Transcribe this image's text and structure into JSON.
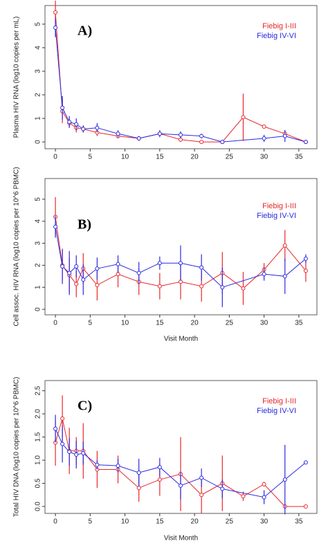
{
  "chart_data": [
    {
      "type": "line",
      "panel_label": "A)",
      "ylabel": "Plasma HIV RNA (log10 copies per mL)",
      "xlim": [
        -1.5,
        37.6
      ],
      "ylim": [
        -0.29,
        5.79
      ],
      "xticks": [
        0,
        5,
        10,
        15,
        20,
        25,
        30,
        35
      ],
      "yticks": [
        0,
        1,
        2,
        3,
        4,
        5
      ],
      "series": [
        {
          "name": "Fiebig I-III",
          "color": "#e8262a",
          "x": [
            0,
            1,
            2,
            3,
            4,
            6,
            9,
            12,
            15,
            18,
            21,
            24,
            27,
            30,
            33,
            36
          ],
          "values": [
            5.5,
            1.3,
            0.8,
            0.6,
            0.55,
            0.4,
            0.25,
            0.15,
            0.35,
            0.1,
            0.0,
            0.0,
            1.05,
            0.65,
            0.35,
            0.0
          ],
          "errors": [
            0.5,
            0.5,
            0.2,
            0.2,
            0.15,
            0.15,
            0.1,
            0.05,
            0.1,
            0.1,
            0.05,
            0.05,
            1.0,
            0.05,
            0.15,
            0.05
          ]
        },
        {
          "name": "Fiebig IV-VI",
          "color": "#2a2ae0",
          "x": [
            0,
            1,
            2,
            3,
            4,
            6,
            9,
            12,
            15,
            18,
            21,
            24,
            30,
            33,
            36
          ],
          "values": [
            4.85,
            1.45,
            0.85,
            0.75,
            0.55,
            0.6,
            0.35,
            0.15,
            0.35,
            0.3,
            0.25,
            0.0,
            0.15,
            0.25,
            0.0
          ],
          "errors": [
            0.4,
            0.5,
            0.25,
            0.25,
            0.15,
            0.2,
            0.15,
            0.1,
            0.15,
            0.15,
            0.1,
            0.05,
            0.15,
            0.25,
            0.05
          ]
        }
      ]
    },
    {
      "type": "line",
      "panel_label": "B)",
      "ylabel": "Cell assoc. HIV RNA (log10 copies per 10^6 PBMC)",
      "xlabel": "Visit Month",
      "xlim": [
        -1.5,
        37.6
      ],
      "ylim": [
        -0.25,
        5.94
      ],
      "xticks": [
        0,
        5,
        10,
        15,
        20,
        25,
        30,
        35
      ],
      "yticks": [
        0,
        1,
        2,
        3,
        4,
        5
      ],
      "series": [
        {
          "name": "Fiebig I-III",
          "color": "#e8262a",
          "x": [
            0,
            1,
            2,
            3,
            4,
            6,
            9,
            12,
            15,
            18,
            21,
            24,
            27,
            30,
            33,
            36
          ],
          "values": [
            4.2,
            2.0,
            1.55,
            1.15,
            1.85,
            1.1,
            1.6,
            1.25,
            1.05,
            1.25,
            1.05,
            1.65,
            0.95,
            1.8,
            2.9,
            1.75
          ],
          "errors": [
            0.9,
            0.7,
            0.8,
            0.6,
            0.7,
            0.7,
            0.6,
            0.6,
            0.6,
            0.8,
            0.7,
            0.95,
            0.75,
            0.3,
            0.7,
            0.5
          ]
        },
        {
          "name": "Fiebig IV-VI",
          "color": "#2a2ae0",
          "x": [
            0,
            1,
            2,
            3,
            4,
            6,
            9,
            12,
            15,
            18,
            21,
            24,
            30,
            33,
            36
          ],
          "values": [
            3.75,
            1.95,
            1.65,
            1.95,
            1.35,
            1.85,
            2.05,
            1.65,
            2.1,
            2.1,
            1.9,
            1.0,
            1.6,
            1.5,
            2.3
          ],
          "errors": [
            0.5,
            0.8,
            1.0,
            0.5,
            0.7,
            0.5,
            0.4,
            0.5,
            0.3,
            0.8,
            0.6,
            0.9,
            0.3,
            0.8,
            0.2
          ]
        }
      ]
    },
    {
      "type": "line",
      "panel_label": "C)",
      "ylabel": "Total HIV DNA (log10 copies per 10^6 PBMC)",
      "xlabel": "Visit Month",
      "xlim": [
        -1.5,
        37.6
      ],
      "ylim": [
        -0.15,
        2.72
      ],
      "xticks": [
        0,
        5,
        10,
        15,
        20,
        25,
        30,
        35
      ],
      "yticks": [
        {
          "value": 0,
          "label": "0.0"
        },
        0.5,
        {
          "value": 1,
          "label": "1.0"
        },
        1.5,
        {
          "value": 2,
          "label": "2.0"
        },
        2.5
      ],
      "series": [
        {
          "name": "Fiebig I-III",
          "color": "#e8262a",
          "x": [
            0,
            1,
            2,
            3,
            4,
            6,
            9,
            12,
            15,
            18,
            21,
            24,
            27,
            30,
            33,
            36
          ],
          "values": [
            1.38,
            1.9,
            1.2,
            1.2,
            1.2,
            0.8,
            0.8,
            0.4,
            0.58,
            0.7,
            0.25,
            0.5,
            0.22,
            0.48,
            0.0,
            0.0
          ],
          "errors": [
            0.5,
            0.5,
            0.5,
            0.3,
            0.6,
            0.4,
            0.3,
            0.3,
            0.35,
            0.8,
            0.4,
            0.6,
            0.1,
            0.05,
            0.05,
            0.02
          ]
        },
        {
          "name": "Fiebig IV-VI",
          "color": "#2a2ae0",
          "x": [
            0,
            1,
            2,
            3,
            4,
            6,
            9,
            12,
            15,
            18,
            21,
            24,
            30,
            33,
            36
          ],
          "values": [
            1.68,
            1.35,
            1.18,
            1.12,
            1.15,
            0.9,
            0.88,
            0.73,
            0.85,
            0.45,
            0.62,
            0.38,
            0.2,
            0.58,
            0.95
          ],
          "errors": [
            0.3,
            0.4,
            0.3,
            0.3,
            0.25,
            0.1,
            0.15,
            0.3,
            0.2,
            0.3,
            0.2,
            0.2,
            0.15,
            0.75,
            0.02
          ]
        }
      ]
    }
  ]
}
